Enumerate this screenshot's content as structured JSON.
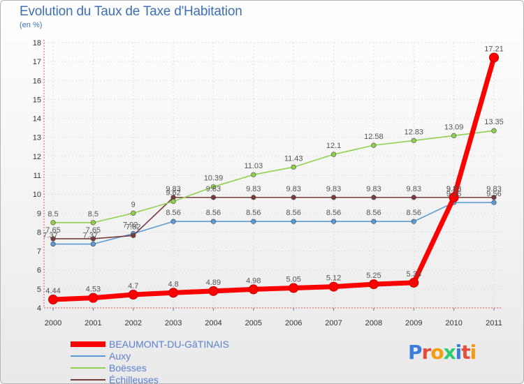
{
  "page": {
    "title": "Evolution du Taux de Taxe d'Habitation",
    "subtitle": "(en %)"
  },
  "chart_data": {
    "type": "line",
    "title": "Evolution du Taux de Taxe d'Habitation",
    "ylabel": "(en %)",
    "xlabel": "",
    "ylim": [
      4,
      18
    ],
    "yticks": [
      "4",
      "5",
      "6",
      "7",
      "8",
      "9",
      "10",
      "11",
      "12",
      "13",
      "14",
      "15",
      "16",
      "17",
      "18"
    ],
    "categories": [
      "2000",
      "2001",
      "2002",
      "2003",
      "2004",
      "2005",
      "2006",
      "2007",
      "2008",
      "2009",
      "2010",
      "2011"
    ],
    "grid": true,
    "legend_position": "bottom-left",
    "series": [
      {
        "name": "BEAUMONT-DU-GâTINAIS",
        "color": "#ff0000",
        "values": [
          4.44,
          4.53,
          4.7,
          4.8,
          4.89,
          4.98,
          5.05,
          5.12,
          5.25,
          5.33,
          9.83,
          17.21
        ],
        "labels": [
          "4.44",
          "4.53",
          "4.7",
          "4.8",
          "4.89",
          "4.98",
          "5.05",
          "5.12",
          "5.25",
          "5.33",
          "9.83",
          "17.21"
        ]
      },
      {
        "name": "Auxy",
        "color": "#5b9bd5",
        "values": [
          7.37,
          7.37,
          7.92,
          8.56,
          8.56,
          8.56,
          8.56,
          8.56,
          8.56,
          8.56,
          9.56,
          9.56
        ],
        "labels": [
          "7.37",
          "7.37",
          "7.92",
          "8.56",
          "8.56",
          "8.56",
          "8.56",
          "8.56",
          "8.56",
          "8.56",
          "9.56",
          "9.56"
        ]
      },
      {
        "name": "Boësses",
        "color": "#8fd14f",
        "values": [
          8.5,
          8.5,
          9.0,
          9.62,
          10.39,
          11.03,
          11.43,
          12.1,
          12.58,
          12.83,
          13.09,
          13.35
        ],
        "labels": [
          "8.5",
          "8.5",
          "9",
          "9.62",
          "10.39",
          "11.03",
          "11.43",
          "12.1",
          "12.58",
          "12.83",
          "13.09",
          "13.35"
        ]
      },
      {
        "name": "Échilleuses",
        "color": "#7a3b3b",
        "values": [
          7.65,
          7.65,
          7.82,
          9.83,
          9.83,
          9.83,
          9.83,
          9.83,
          9.83,
          9.83,
          9.83,
          9.83
        ],
        "labels": [
          "7.65",
          "7.65",
          "7.82",
          "9.83",
          "9.83",
          "9.83",
          "9.83",
          "9.83",
          "9.83",
          "9.83",
          "9.83",
          "9.83"
        ]
      }
    ]
  },
  "brand": {
    "letters": [
      "P",
      "r",
      "o",
      "x",
      "i",
      "t",
      "i"
    ],
    "colors": [
      "#3b7dd8",
      "#e74c3c",
      "#f39c12",
      "#2ecc71",
      "#3b7dd8",
      "#e74c3c",
      "#f39c12"
    ]
  }
}
